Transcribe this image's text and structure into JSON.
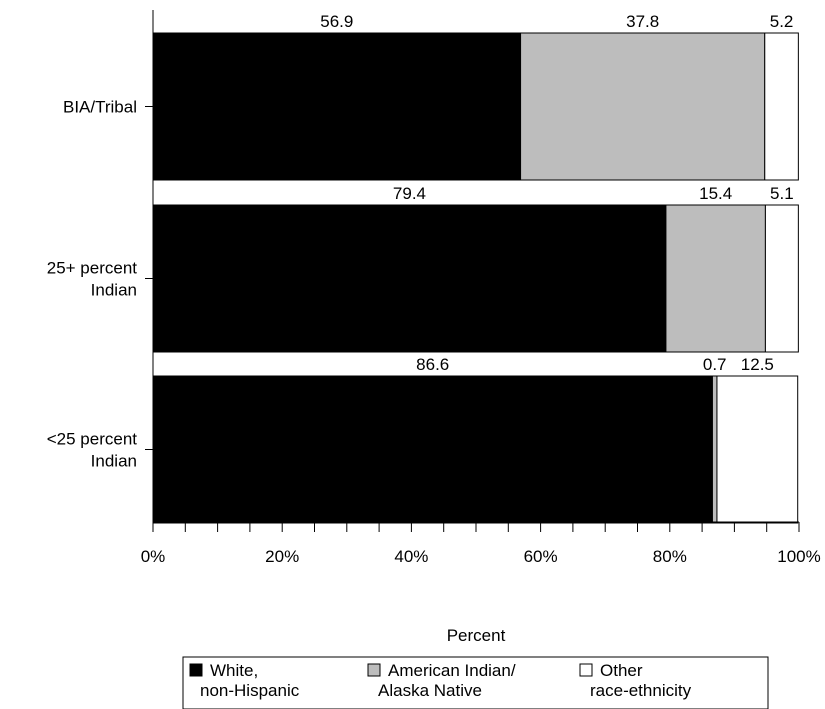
{
  "chart_data": {
    "type": "bar",
    "orientation": "horizontal",
    "stacked": true,
    "categories": [
      "BIA/Tribal",
      "25+ percent Indian",
      "<25 percent Indian"
    ],
    "category_label_lines": [
      [
        "BIA/Tribal"
      ],
      [
        "25+ percent",
        "Indian"
      ],
      [
        "<25 percent",
        "Indian"
      ]
    ],
    "series": [
      {
        "name": "White, non-Hispanic",
        "name_lines": [
          "White,",
          "non-Hispanic"
        ],
        "values": [
          56.9,
          79.4,
          86.6
        ],
        "labels": [
          "56.9",
          "79.4",
          "86.6"
        ],
        "color": "#000000"
      },
      {
        "name": "American Indian/ Alaska Native",
        "name_lines": [
          "American Indian/",
          "Alaska Native"
        ],
        "values": [
          37.8,
          15.4,
          0.7
        ],
        "labels": [
          "37.8",
          "15.4",
          "0.7"
        ],
        "color": "#bdbdbd"
      },
      {
        "name": "Other race-ethnicity",
        "name_lines": [
          "Other",
          "race-ethnicity"
        ],
        "values": [
          5.2,
          5.1,
          12.5
        ],
        "labels": [
          "5.2",
          "5.1",
          "12.5"
        ],
        "color": "#ffffff"
      }
    ],
    "xlabel": "Percent",
    "ylabel": "",
    "title": "",
    "xlim": [
      0,
      100
    ],
    "xticks": [
      0,
      20,
      40,
      60,
      80,
      100
    ],
    "xtick_labels": [
      "0%",
      "20%",
      "40%",
      "60%",
      "80%",
      "100%"
    ],
    "minor_tick_step": 5,
    "grid": false,
    "legend_position": "bottom"
  }
}
